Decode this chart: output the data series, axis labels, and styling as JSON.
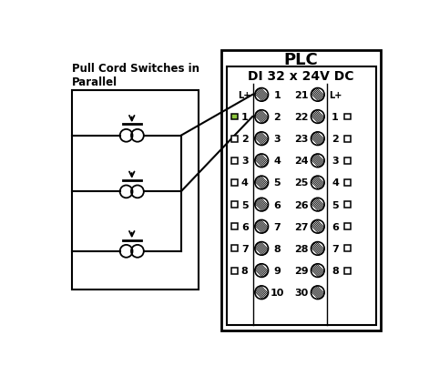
{
  "title_left": "Pull Cord Switches in\nParallel",
  "title_right": "PLC",
  "subtitle": "DI 32 x 24V DC",
  "green_color": "#8dc63f",
  "bg_color": "#ffffff",
  "text_color": "#000000",
  "fig_w": 4.71,
  "fig_h": 4.14,
  "dpi": 100,
  "left_col_numbers": [
    1,
    2,
    3,
    4,
    5,
    6,
    7,
    8,
    9,
    10
  ],
  "right_col_numbers": [
    21,
    22,
    23,
    24,
    25,
    26,
    27,
    28,
    29,
    30
  ],
  "left_side_labels": [
    "L+",
    "1",
    "2",
    "3",
    "4",
    "5",
    "6",
    "7",
    "8"
  ],
  "right_side_labels": [
    "L+",
    "1",
    "2",
    "3",
    "4",
    "5",
    "6",
    "7",
    "8"
  ],
  "green_row": 1
}
